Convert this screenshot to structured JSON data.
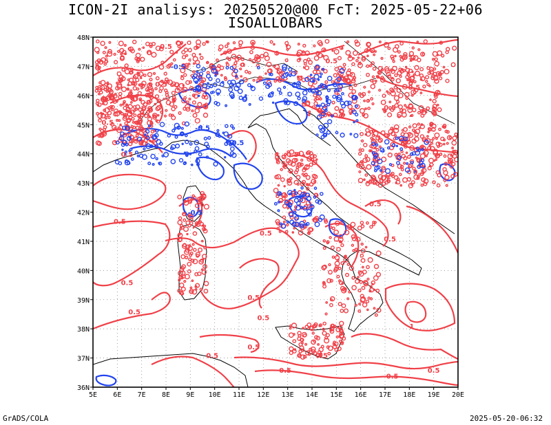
{
  "title_line1": "ICON-2I analisys: 20250520@00 FcT: 2025-05-22+06",
  "title_line2": "ISOALLOBARS",
  "credit": "GrADS/COLA",
  "timestamp": "2025-05-20-06:32",
  "colors": {
    "positive": "#f04048",
    "negative": "#2244ee",
    "coast": "#000000",
    "grid": "#888888"
  },
  "map": {
    "lon_range": [
      5,
      20
    ],
    "lat_range": [
      36,
      48
    ],
    "lon_labels": [
      "5E",
      "6E",
      "7E",
      "8E",
      "9E",
      "10E",
      "11E",
      "12E",
      "13E",
      "14E",
      "15E",
      "16E",
      "17E",
      "18E",
      "19E",
      "20E"
    ],
    "lat_labels": [
      "36N",
      "37N",
      "38N",
      "39N",
      "40N",
      "41N",
      "42N",
      "43N",
      "44N",
      "45N",
      "46N",
      "47N",
      "48N"
    ],
    "contour_labels": [
      {
        "text": "0.5",
        "lon": 5.4,
        "lat": 47.1,
        "color": "positive"
      },
      {
        "text": "0.5",
        "lon": 8.0,
        "lat": 47.6,
        "color": "positive"
      },
      {
        "text": "0.5",
        "lon": 14.8,
        "lat": 47.1,
        "color": "positive"
      },
      {
        "text": "-0.5",
        "lon": 8.5,
        "lat": 46.9,
        "color": "negative"
      },
      {
        "text": "-0.5",
        "lon": 14.0,
        "lat": 46.1,
        "color": "negative"
      },
      {
        "text": "0.5",
        "lon": 7.8,
        "lat": 46.3,
        "color": "positive"
      },
      {
        "text": "0.5",
        "lon": 18.2,
        "lat": 46.2,
        "color": "positive"
      },
      {
        "text": "0.5",
        "lon": 17.2,
        "lat": 45.5,
        "color": "positive"
      },
      {
        "text": "0.5",
        "lon": 5.6,
        "lat": 45.0,
        "color": "positive"
      },
      {
        "text": "-0.5",
        "lon": 9.5,
        "lat": 44.8,
        "color": "negative"
      },
      {
        "text": "-0.5",
        "lon": 10.9,
        "lat": 44.3,
        "color": "negative"
      },
      {
        "text": "0.5",
        "lon": 6.4,
        "lat": 43.9,
        "color": "positive"
      },
      {
        "text": "0.5",
        "lon": 13.2,
        "lat": 43.9,
        "color": "positive"
      },
      {
        "text": "0.5",
        "lon": 18.4,
        "lat": 43.3,
        "color": "positive"
      },
      {
        "text": "0.5",
        "lon": 17.0,
        "lat": 43.0,
        "color": "positive"
      },
      {
        "text": "0.5",
        "lon": 16.6,
        "lat": 42.2,
        "color": "positive"
      },
      {
        "text": "-0.5",
        "lon": 9.2,
        "lat": 41.9,
        "color": "negative"
      },
      {
        "text": "0.5",
        "lon": 6.1,
        "lat": 41.6,
        "color": "positive"
      },
      {
        "text": "0.5",
        "lon": 12.1,
        "lat": 41.2,
        "color": "positive"
      },
      {
        "text": "0.5",
        "lon": 17.2,
        "lat": 41.0,
        "color": "positive"
      },
      {
        "text": "0.5",
        "lon": 6.4,
        "lat": 39.5,
        "color": "positive"
      },
      {
        "text": "0.5",
        "lon": 11.6,
        "lat": 39.0,
        "color": "positive"
      },
      {
        "text": "0.5",
        "lon": 6.7,
        "lat": 38.5,
        "color": "positive"
      },
      {
        "text": "0.5",
        "lon": 12.0,
        "lat": 38.3,
        "color": "positive"
      },
      {
        "text": "1",
        "lon": 18.1,
        "lat": 38.0,
        "color": "positive"
      },
      {
        "text": "0.5",
        "lon": 9.9,
        "lat": 37.0,
        "color": "positive"
      },
      {
        "text": "0.5",
        "lon": 11.6,
        "lat": 37.3,
        "color": "positive"
      },
      {
        "text": "0.5",
        "lon": 12.9,
        "lat": 36.5,
        "color": "positive"
      },
      {
        "text": "0.5",
        "lon": 14.4,
        "lat": 37.0,
        "color": "positive"
      },
      {
        "text": "0.5",
        "lon": 17.3,
        "lat": 36.3,
        "color": "positive"
      },
      {
        "text": "0.5",
        "lon": 19.0,
        "lat": 36.5,
        "color": "positive"
      }
    ]
  }
}
